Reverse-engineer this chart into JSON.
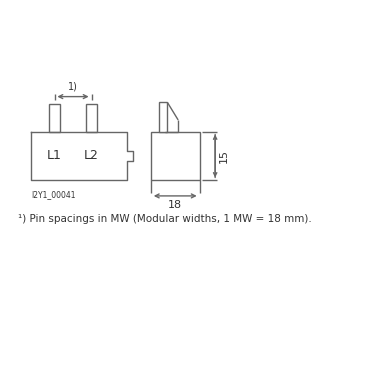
{
  "bg_color": "#ffffff",
  "line_color": "#666666",
  "text_color": "#333333",
  "dim_label_18": "18",
  "dim_label_15": "15",
  "label_L1": "L1",
  "label_L2": "L2",
  "image_code": "I2Y1_00041",
  "footnote": "¹) Pin spacings in MW (Modular widths, 1 MW = 18 mm)."
}
